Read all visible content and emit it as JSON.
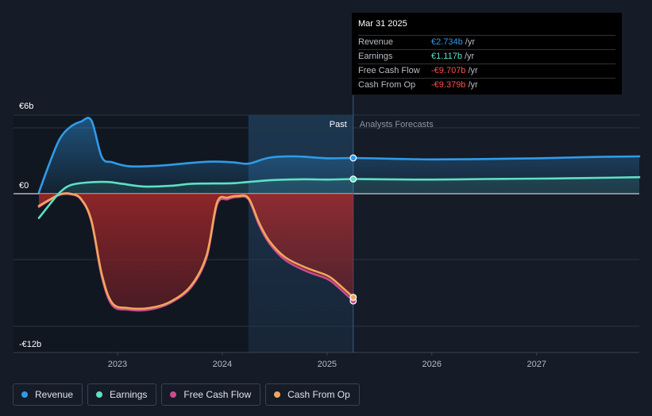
{
  "tooltip": {
    "date": "Mar 31 2025",
    "rows": [
      {
        "label": "Revenue",
        "value": "€2.734b",
        "unit": "/yr",
        "color": "#2f9be8"
      },
      {
        "label": "Earnings",
        "value": "€1.117b",
        "unit": "/yr",
        "color": "#5ee0c4"
      },
      {
        "label": "Free Cash Flow",
        "value": "-€9.707b",
        "unit": "/yr",
        "color": "#ff4e4e"
      },
      {
        "label": "Cash From Op",
        "value": "-€9.379b",
        "unit": "/yr",
        "color": "#ff4e4e"
      }
    ]
  },
  "legend": [
    {
      "label": "Revenue",
      "color": "#2f9be8"
    },
    {
      "label": "Earnings",
      "color": "#5ee0c4"
    },
    {
      "label": "Free Cash Flow",
      "color": "#c94c8f"
    },
    {
      "label": "Cash From Op",
      "color": "#f2a65a"
    }
  ],
  "chart_data": {
    "type": "line",
    "y_tick_labels": [
      "€6b",
      "€0",
      "-€12b"
    ],
    "y_ticks": [
      6,
      0,
      -12
    ],
    "ylim": [
      -12,
      6
    ],
    "xlim": [
      2022.25,
      2027.98
    ],
    "x_tick_labels": [
      "2023",
      "2024",
      "2025",
      "2026",
      "2027"
    ],
    "x_ticks": [
      2023,
      2024,
      2025,
      2026,
      2027
    ],
    "past_label": "Past",
    "forecast_label": "Analysts Forecasts",
    "past_cutoff": 2025.25,
    "shaded_from": 2024.25,
    "series": [
      {
        "name": "Revenue",
        "color": "#2f9be8",
        "points": [
          [
            2022.25,
            0.1
          ],
          [
            2022.35,
            2.3
          ],
          [
            2022.45,
            4.2
          ],
          [
            2022.55,
            5.1
          ],
          [
            2022.65,
            5.5
          ],
          [
            2022.75,
            5.6
          ],
          [
            2022.85,
            2.8
          ],
          [
            2022.95,
            2.4
          ],
          [
            2023.1,
            2.1
          ],
          [
            2023.3,
            2.1
          ],
          [
            2023.5,
            2.2
          ],
          [
            2023.7,
            2.35
          ],
          [
            2023.9,
            2.45
          ],
          [
            2024.1,
            2.4
          ],
          [
            2024.25,
            2.3
          ],
          [
            2024.45,
            2.75
          ],
          [
            2024.7,
            2.85
          ],
          [
            2025.0,
            2.7
          ],
          [
            2025.25,
            2.73
          ],
          [
            2025.6,
            2.67
          ],
          [
            2026.0,
            2.62
          ],
          [
            2026.5,
            2.65
          ],
          [
            2027.0,
            2.7
          ],
          [
            2027.5,
            2.8
          ],
          [
            2027.98,
            2.85
          ]
        ]
      },
      {
        "name": "Earnings",
        "color": "#5ee0c4",
        "points": [
          [
            2022.25,
            -2.2
          ],
          [
            2022.35,
            -1.0
          ],
          [
            2022.45,
            0.1
          ],
          [
            2022.55,
            0.65
          ],
          [
            2022.7,
            0.85
          ],
          [
            2022.9,
            0.9
          ],
          [
            2023.05,
            0.75
          ],
          [
            2023.25,
            0.55
          ],
          [
            2023.5,
            0.6
          ],
          [
            2023.7,
            0.75
          ],
          [
            2023.9,
            0.78
          ],
          [
            2024.1,
            0.8
          ],
          [
            2024.25,
            0.9
          ],
          [
            2024.5,
            1.05
          ],
          [
            2024.8,
            1.1
          ],
          [
            2025.0,
            1.08
          ],
          [
            2025.25,
            1.12
          ],
          [
            2025.5,
            1.1
          ],
          [
            2026.0,
            1.08
          ],
          [
            2026.5,
            1.12
          ],
          [
            2027.0,
            1.15
          ],
          [
            2027.5,
            1.2
          ],
          [
            2027.98,
            1.26
          ]
        ]
      },
      {
        "name": "Free Cash Flow",
        "color": "#c94c8f",
        "points": [
          [
            2022.25,
            -1.2
          ],
          [
            2022.35,
            -0.6
          ],
          [
            2022.45,
            -0.1
          ],
          [
            2022.55,
            -0.05
          ],
          [
            2022.65,
            -0.5
          ],
          [
            2022.75,
            -2.5
          ],
          [
            2022.85,
            -7.5
          ],
          [
            2022.95,
            -10.1
          ],
          [
            2023.1,
            -10.5
          ],
          [
            2023.3,
            -10.5
          ],
          [
            2023.5,
            -9.9
          ],
          [
            2023.7,
            -8.5
          ],
          [
            2023.85,
            -5.8
          ],
          [
            2023.95,
            -1.0
          ],
          [
            2024.05,
            -0.5
          ],
          [
            2024.15,
            -0.3
          ],
          [
            2024.25,
            -0.5
          ],
          [
            2024.35,
            -2.8
          ],
          [
            2024.45,
            -4.5
          ],
          [
            2024.6,
            -6.0
          ],
          [
            2024.8,
            -7.0
          ],
          [
            2025.0,
            -7.7
          ],
          [
            2025.1,
            -8.4
          ],
          [
            2025.25,
            -9.71
          ]
        ]
      },
      {
        "name": "Cash From Op",
        "color": "#f2a65a",
        "points": [
          [
            2022.25,
            -1.1
          ],
          [
            2022.35,
            -0.55
          ],
          [
            2022.45,
            -0.05
          ],
          [
            2022.55,
            0.0
          ],
          [
            2022.65,
            -0.45
          ],
          [
            2022.75,
            -2.4
          ],
          [
            2022.85,
            -7.3
          ],
          [
            2022.95,
            -9.9
          ],
          [
            2023.1,
            -10.35
          ],
          [
            2023.3,
            -10.35
          ],
          [
            2023.5,
            -9.8
          ],
          [
            2023.7,
            -8.35
          ],
          [
            2023.85,
            -5.6
          ],
          [
            2023.95,
            -0.8
          ],
          [
            2024.05,
            -0.35
          ],
          [
            2024.15,
            -0.2
          ],
          [
            2024.25,
            -0.4
          ],
          [
            2024.35,
            -2.6
          ],
          [
            2024.45,
            -4.3
          ],
          [
            2024.6,
            -5.75
          ],
          [
            2024.8,
            -6.7
          ],
          [
            2025.0,
            -7.4
          ],
          [
            2025.1,
            -8.1
          ],
          [
            2025.25,
            -9.38
          ]
        ]
      }
    ]
  }
}
